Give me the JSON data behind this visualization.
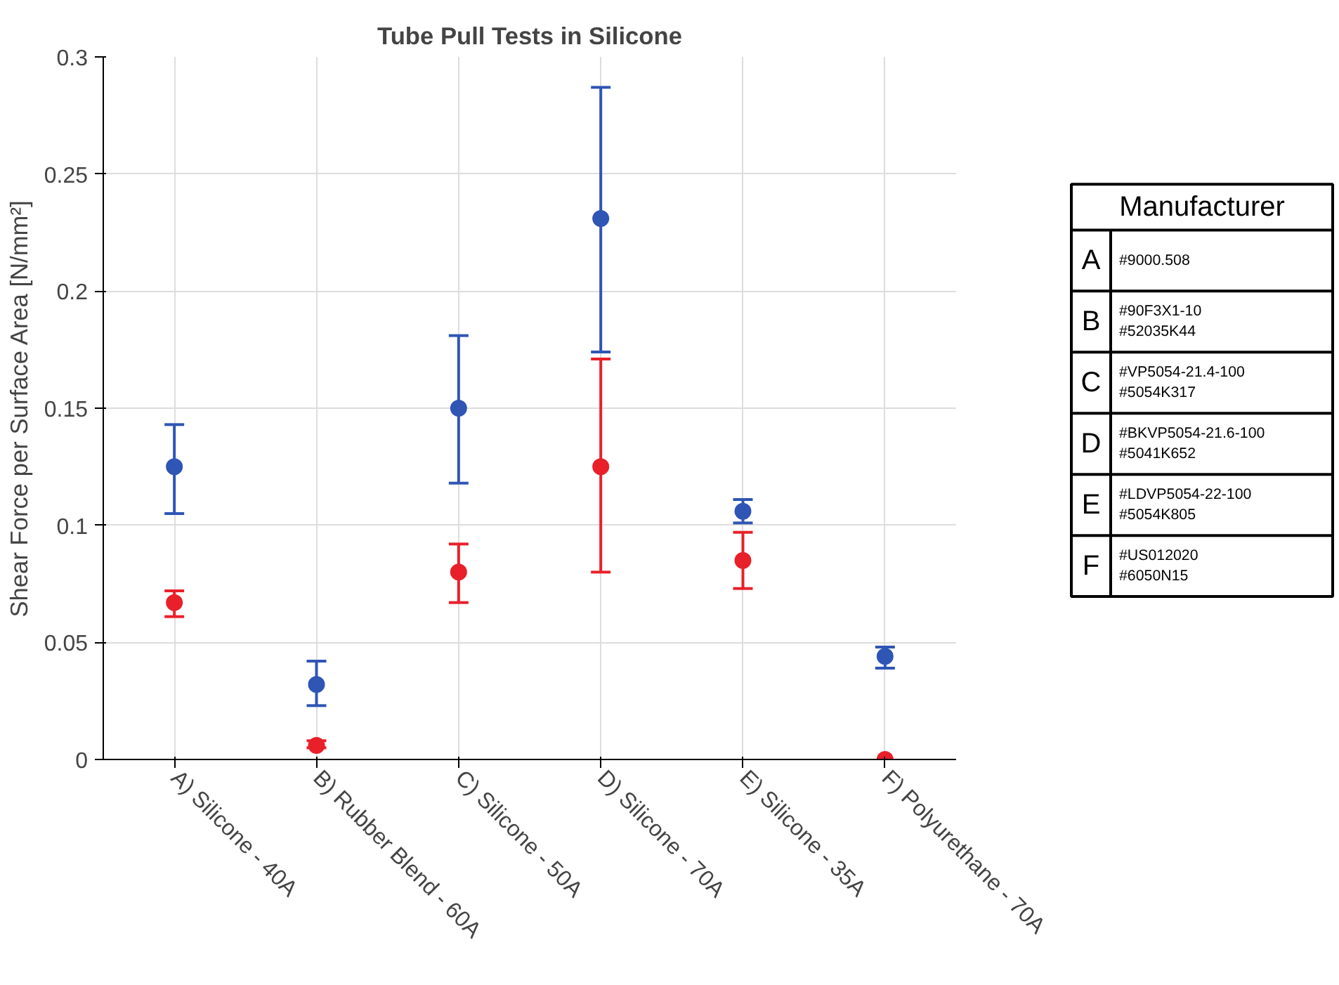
{
  "chart_data": {
    "type": "scatter",
    "title": "Tube Pull Tests in Silicone",
    "ylabel": "Shear Force per Surface Area [N/mm²]",
    "categories": [
      "A) Silicone - 40A",
      "B) Rubber Blend - 60A",
      "C) Silicone - 50A",
      "D) Silicone - 70A",
      "E) Silicone - 35A",
      "F) Polyurethane - 70A"
    ],
    "series": [
      {
        "color": "#e8202a",
        "values": [
          0.067,
          0.006,
          0.08,
          0.125,
          0.085,
          0.0
        ],
        "errors": [
          [
            0.061,
            0.072
          ],
          [
            0.005,
            0.008
          ],
          [
            0.067,
            0.092
          ],
          [
            0.08,
            0.171
          ],
          [
            0.073,
            0.097
          ],
          null
        ]
      },
      {
        "color": "#2f55b5",
        "values": [
          0.125,
          0.032,
          0.15,
          0.231,
          0.106,
          0.044
        ],
        "errors": [
          [
            0.105,
            0.143
          ],
          [
            0.023,
            0.042
          ],
          [
            0.118,
            0.181
          ],
          [
            0.174,
            0.287
          ],
          [
            0.101,
            0.111
          ],
          [
            0.039,
            0.048
          ]
        ]
      }
    ],
    "ylim": [
      0,
      0.3
    ],
    "yticks": [
      0,
      0.05,
      0.1,
      0.15,
      0.2,
      0.25,
      0.3
    ],
    "grid": true,
    "marker": "circle",
    "annotations": [
      "Manufacturer",
      "A",
      "#9000.508",
      "B",
      "#90F3X1-10\n#52035K44",
      "C",
      "#VP5054-21.4-100\n#5054K317",
      "D",
      "#BKVP5054-21.6-100\n#5041K652",
      "E",
      "#LDVP5054-22-100\n#5054K805",
      "F",
      "#US012020\n#6050N15"
    ]
  }
}
